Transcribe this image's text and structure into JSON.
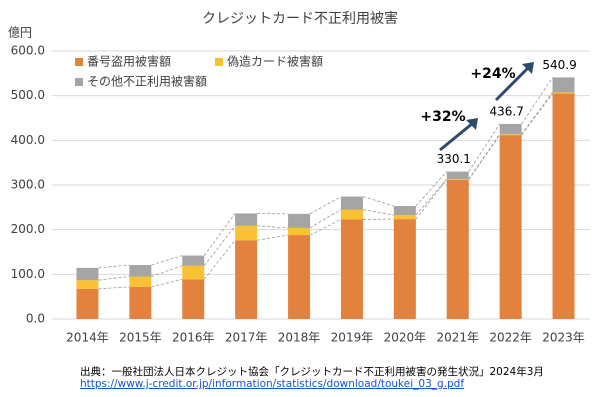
{
  "chart_data": {
    "type": "stacked_bar",
    "title": "クレジットカード不正利用被害",
    "y_unit": "億円",
    "categories": [
      "2014年",
      "2015年",
      "2016年",
      "2017年",
      "2018年",
      "2019年",
      "2020年",
      "2021年",
      "2022年",
      "2023年"
    ],
    "series": [
      {
        "name": "番号盗用被害額",
        "color": "#e3823e",
        "values": [
          67.4,
          72.0,
          88.9,
          176.3,
          187.9,
          222.9,
          223.6,
          311.7,
          411.7,
          504.7
        ]
      },
      {
        "name": "偽造カード被害額",
        "color": "#f9c232",
        "values": [
          19.5,
          23.1,
          30.6,
          32.4,
          16.0,
          22.2,
          8.8,
          1.5,
          1.9,
          2.6
        ]
      },
      {
        "name": "その他不正利用被害額",
        "color": "#a5a5a5",
        "values": [
          27.6,
          25.8,
          22.5,
          27.7,
          31.5,
          29.0,
          20.6,
          16.9,
          23.1,
          33.6
        ]
      }
    ],
    "total_labels": [
      {
        "category": 7,
        "value": 330.1
      },
      {
        "category": 8,
        "value": 436.7
      },
      {
        "category": 9,
        "value": 540.9
      }
    ],
    "growth_labels": [
      "+32%",
      "+24%"
    ],
    "ylim": [
      0,
      600
    ],
    "yticks": [
      {
        "value": 0,
        "label": "0.0"
      },
      {
        "value": 100,
        "label": "100.0"
      },
      {
        "value": 200,
        "label": "200.0"
      },
      {
        "value": 300,
        "label": "300.0"
      },
      {
        "value": 400,
        "label": "400.0"
      },
      {
        "value": 500,
        "label": "500.0"
      },
      {
        "value": 600,
        "label": "600.0"
      }
    ],
    "grid": true,
    "source": "出典：一般社団法人日本クレジット協会「クレジットカード不正利用被害の発生状況」2024年3月",
    "source_url": "https://www.j-credit.or.jp/information/statistics/download/toukei_03_g.pdf"
  }
}
